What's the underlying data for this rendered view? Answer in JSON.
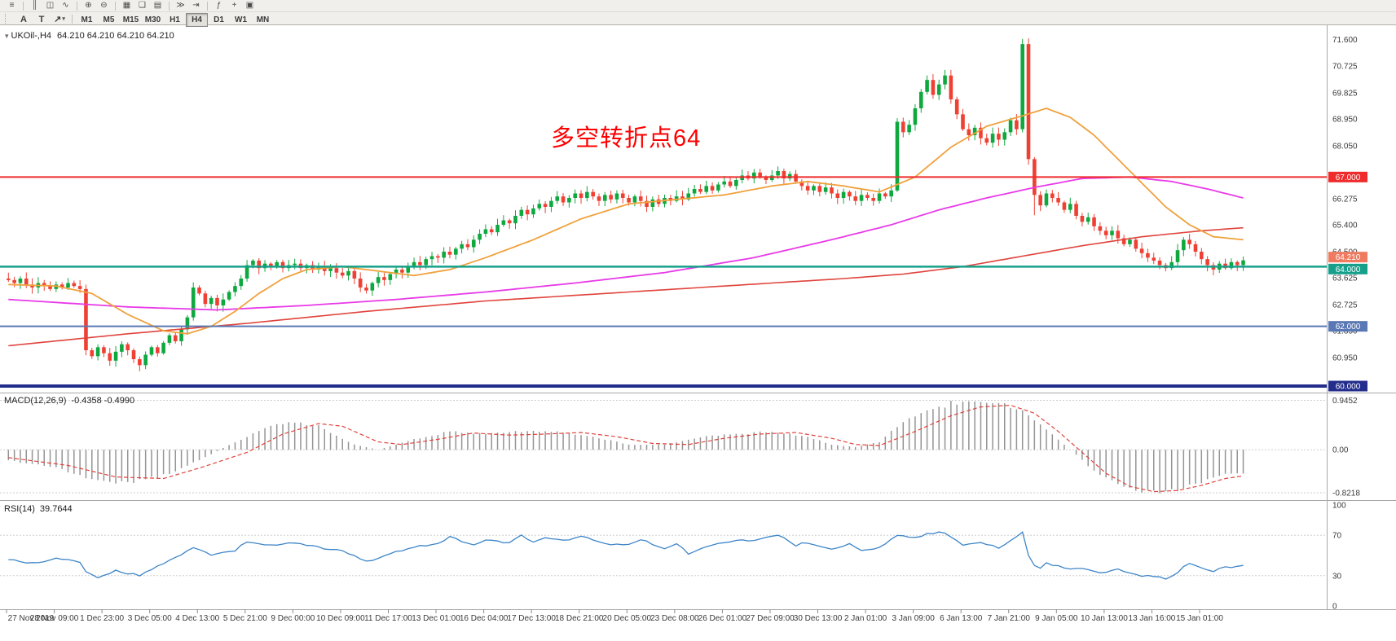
{
  "toolbar": {
    "row1_groups": [
      [
        {
          "name": "window-menu-icon",
          "glyph": "≡"
        }
      ],
      [
        {
          "name": "bars-chart-icon",
          "glyph": "║"
        },
        {
          "name": "candlestick-chart-icon",
          "glyph": "◫"
        },
        {
          "name": "line-chart-icon",
          "glyph": "∿"
        }
      ],
      [
        {
          "name": "zoom-in-icon",
          "glyph": "⊕"
        },
        {
          "name": "zoom-out-icon",
          "glyph": "⊖"
        }
      ],
      [
        {
          "name": "tile-windows-icon",
          "glyph": "▦"
        },
        {
          "name": "cascade-windows-icon",
          "glyph": "❏"
        },
        {
          "name": "arrange-windows-icon",
          "glyph": "▤"
        }
      ],
      [
        {
          "name": "auto-scroll-icon",
          "glyph": "≫"
        },
        {
          "name": "chart-shift-icon",
          "glyph": "⇥"
        }
      ],
      [
        {
          "name": "indicators-icon",
          "glyph": "ƒ"
        },
        {
          "name": "add-object-icon",
          "glyph": "+"
        },
        {
          "name": "templates-icon",
          "glyph": "▣"
        }
      ]
    ],
    "row2_tools": [
      {
        "name": "text-tool",
        "glyph": "A"
      },
      {
        "name": "label-tool",
        "glyph": "T"
      },
      {
        "name": "arrow-objects-tool",
        "glyph": "↗",
        "caret": "▾"
      }
    ],
    "timeframes": [
      "M1",
      "M5",
      "M15",
      "M30",
      "H1",
      "H4",
      "D1",
      "W1",
      "MN"
    ],
    "active_timeframe": "H4"
  },
  "chart": {
    "title_icon": "▾",
    "title_symbol": "UKOil-,H4",
    "title_ohlc": "64.210 64.210 64.210 64.210",
    "annotation_text": "多空转折点64"
  },
  "colors": {
    "up": "#0fa83f",
    "down": "#ef4034",
    "ma_red": "#e0433c",
    "ma_magenta": "#e83ae8",
    "ma_orange": "#f0a13c",
    "macd_hist": "#949494",
    "macd_signal": "#e0433c",
    "rsi_line": "#3d85c8",
    "annotation": "#fe0000"
  },
  "chart_data": {
    "type": "candlestick",
    "symbol": "UKOil-",
    "period": "H4",
    "price_range": [
      59.9,
      72.0
    ],
    "first_open": 63.6,
    "closes": [
      63.55,
      63.45,
      63.6,
      63.4,
      63.3,
      63.45,
      63.35,
      63.25,
      63.4,
      63.3,
      63.45,
      63.35,
      63.25,
      61.2,
      61.0,
      61.3,
      61.1,
      60.85,
      61.15,
      61.4,
      61.2,
      60.9,
      60.7,
      61.05,
      61.3,
      61.1,
      61.45,
      61.7,
      61.5,
      61.9,
      62.3,
      63.3,
      63.1,
      62.75,
      62.95,
      62.7,
      62.9,
      63.15,
      63.35,
      63.6,
      64.05,
      64.2,
      63.95,
      64.1,
      64.0,
      64.15,
      63.95,
      64.05,
      64.1,
      63.95,
      64.05,
      63.9,
      64.0,
      63.85,
      63.95,
      63.8,
      63.7,
      63.85,
      63.6,
      63.3,
      63.2,
      63.45,
      63.65,
      63.55,
      63.75,
      63.9,
      63.8,
      64.0,
      64.15,
      64.05,
      64.25,
      64.35,
      64.3,
      64.5,
      64.4,
      64.6,
      64.75,
      64.65,
      64.9,
      65.1,
      65.25,
      65.15,
      65.4,
      65.55,
      65.45,
      65.7,
      65.9,
      65.75,
      65.95,
      66.1,
      66.0,
      66.2,
      66.35,
      66.15,
      66.3,
      66.45,
      66.3,
      66.5,
      66.35,
      66.2,
      66.4,
      66.25,
      66.45,
      66.3,
      66.15,
      66.35,
      66.2,
      66.0,
      66.25,
      66.1,
      66.3,
      66.2,
      66.35,
      66.25,
      66.45,
      66.6,
      66.5,
      66.7,
      66.55,
      66.75,
      66.85,
      66.7,
      66.9,
      67.05,
      66.95,
      67.15,
      67.0,
      66.9,
      67.05,
      67.2,
      66.95,
      67.1,
      66.85,
      66.7,
      66.55,
      66.7,
      66.5,
      66.65,
      66.45,
      66.3,
      66.5,
      66.35,
      66.2,
      66.4,
      66.3,
      66.2,
      66.45,
      66.35,
      66.55,
      68.85,
      68.5,
      68.75,
      69.3,
      69.85,
      70.25,
      69.75,
      70.1,
      70.4,
      69.6,
      69.1,
      68.6,
      68.4,
      68.65,
      68.3,
      68.15,
      68.45,
      68.25,
      68.5,
      68.9,
      68.6,
      71.45,
      67.6,
      66.4,
      66.05,
      66.45,
      66.3,
      66.15,
      65.9,
      66.1,
      65.7,
      65.5,
      65.65,
      65.35,
      65.2,
      65.05,
      65.2,
      64.95,
      64.75,
      64.9,
      64.6,
      64.45,
      64.3,
      64.2,
      64.05,
      63.95,
      64.15,
      64.55,
      64.9,
      64.75,
      64.5,
      64.25,
      64.05,
      63.9,
      64.1,
      63.95,
      64.15,
      64.05,
      64.21
    ],
    "price_axis": [
      {
        "label": "71.600",
        "value": 71.6
      },
      {
        "label": "70.725",
        "value": 70.725
      },
      {
        "label": "69.825",
        "value": 69.825
      },
      {
        "label": "68.950",
        "value": 68.95
      },
      {
        "label": "68.050",
        "value": 68.05
      },
      {
        "label": "66.275",
        "value": 66.275
      },
      {
        "label": "65.400",
        "value": 65.4
      },
      {
        "label": "64.500",
        "value": 64.5
      },
      {
        "label": "63.625",
        "value": 63.625
      },
      {
        "label": "62.725",
        "value": 62.725
      },
      {
        "label": "61.850",
        "value": 61.85
      },
      {
        "label": "60.950",
        "value": 60.95
      }
    ],
    "levels": [
      {
        "label": "67.000",
        "value": 67.0,
        "color": "#ef2b2b",
        "width": 2,
        "badge_dy": 0
      },
      {
        "label": "62.000",
        "value": 62.0,
        "color": "#5a78b4",
        "width": 2,
        "badge_dy": 0
      },
      {
        "label": "60.000",
        "value": 60.0,
        "color": "#232e8c",
        "width": 4,
        "badge_dy": 0
      },
      {
        "label": "64.000",
        "value": 64.0,
        "color": "#16a08c",
        "width": 2.5,
        "badge_dy": 3
      },
      {
        "label": "64.210",
        "value": 64.21,
        "color": "#ef7a5f",
        "width": 0,
        "badge_dy": -4
      }
    ],
    "ma": {
      "red": [
        [
          0,
          61.35
        ],
        [
          20,
          61.75
        ],
        [
          40,
          62.1
        ],
        [
          60,
          62.5
        ],
        [
          80,
          62.85
        ],
        [
          100,
          63.1
        ],
        [
          120,
          63.35
        ],
        [
          140,
          63.6
        ],
        [
          150,
          63.75
        ],
        [
          160,
          64.0
        ],
        [
          170,
          64.35
        ],
        [
          180,
          64.7
        ],
        [
          190,
          65.0
        ],
        [
          200,
          65.2
        ],
        [
          207,
          65.3
        ]
      ],
      "magenta": [
        [
          0,
          62.9
        ],
        [
          20,
          62.65
        ],
        [
          35,
          62.55
        ],
        [
          50,
          62.7
        ],
        [
          65,
          62.9
        ],
        [
          80,
          63.15
        ],
        [
          95,
          63.45
        ],
        [
          110,
          63.8
        ],
        [
          125,
          64.3
        ],
        [
          138,
          64.9
        ],
        [
          148,
          65.4
        ],
        [
          156,
          65.9
        ],
        [
          164,
          66.3
        ],
        [
          172,
          66.65
        ],
        [
          180,
          66.95
        ],
        [
          188,
          67.0
        ],
        [
          195,
          66.85
        ],
        [
          201,
          66.6
        ],
        [
          207,
          66.3
        ]
      ],
      "orange": [
        [
          0,
          63.4
        ],
        [
          8,
          63.35
        ],
        [
          14,
          63.1
        ],
        [
          20,
          62.4
        ],
        [
          26,
          61.85
        ],
        [
          30,
          61.75
        ],
        [
          34,
          62.0
        ],
        [
          38,
          62.5
        ],
        [
          42,
          63.1
        ],
        [
          46,
          63.6
        ],
        [
          50,
          63.9
        ],
        [
          56,
          64.0
        ],
        [
          62,
          63.85
        ],
        [
          68,
          63.7
        ],
        [
          74,
          63.9
        ],
        [
          80,
          64.3
        ],
        [
          88,
          64.9
        ],
        [
          96,
          65.6
        ],
        [
          104,
          66.1
        ],
        [
          112,
          66.25
        ],
        [
          120,
          66.4
        ],
        [
          128,
          66.7
        ],
        [
          134,
          66.85
        ],
        [
          140,
          66.7
        ],
        [
          146,
          66.5
        ],
        [
          152,
          67.0
        ],
        [
          158,
          68.0
        ],
        [
          164,
          68.7
        ],
        [
          170,
          69.05
        ],
        [
          174,
          69.3
        ],
        [
          178,
          69.0
        ],
        [
          182,
          68.4
        ],
        [
          186,
          67.6
        ],
        [
          190,
          66.8
        ],
        [
          194,
          66.0
        ],
        [
          198,
          65.4
        ],
        [
          202,
          65.0
        ],
        [
          207,
          64.9
        ]
      ]
    },
    "macd": {
      "name": "MACD(12,26,9)",
      "values": "-0.4358 -0.4990",
      "range": [
        -0.9,
        1.0
      ],
      "axis": [
        {
          "label": "0.9452",
          "value": 0.9452
        },
        {
          "label": "0.00",
          "value": 0
        },
        {
          "label": "-0.8218",
          "value": -0.8218
        }
      ],
      "hist": [
        [
          0,
          -0.2
        ],
        [
          8,
          -0.35
        ],
        [
          14,
          -0.6
        ],
        [
          20,
          -0.65
        ],
        [
          26,
          -0.5
        ],
        [
          32,
          -0.2
        ],
        [
          38,
          0.15
        ],
        [
          44,
          0.45
        ],
        [
          48,
          0.55
        ],
        [
          52,
          0.45
        ],
        [
          58,
          0.1
        ],
        [
          62,
          0.0
        ],
        [
          68,
          0.2
        ],
        [
          74,
          0.35
        ],
        [
          80,
          0.3
        ],
        [
          86,
          0.35
        ],
        [
          92,
          0.35
        ],
        [
          98,
          0.25
        ],
        [
          104,
          0.1
        ],
        [
          110,
          0.1
        ],
        [
          116,
          0.25
        ],
        [
          122,
          0.3
        ],
        [
          128,
          0.35
        ],
        [
          134,
          0.25
        ],
        [
          138,
          0.1
        ],
        [
          142,
          0.05
        ],
        [
          146,
          0.15
        ],
        [
          150,
          0.55
        ],
        [
          154,
          0.75
        ],
        [
          158,
          0.9
        ],
        [
          162,
          0.945
        ],
        [
          166,
          0.9
        ],
        [
          170,
          0.75
        ],
        [
          174,
          0.4
        ],
        [
          178,
          0.0
        ],
        [
          182,
          -0.4
        ],
        [
          186,
          -0.65
        ],
        [
          190,
          -0.8
        ],
        [
          194,
          -0.82
        ],
        [
          198,
          -0.7
        ],
        [
          202,
          -0.55
        ],
        [
          205,
          -0.46
        ],
        [
          207,
          -0.44
        ]
      ],
      "signal": [
        [
          0,
          -0.15
        ],
        [
          10,
          -0.3
        ],
        [
          18,
          -0.52
        ],
        [
          26,
          -0.55
        ],
        [
          32,
          -0.35
        ],
        [
          40,
          -0.05
        ],
        [
          46,
          0.3
        ],
        [
          52,
          0.5
        ],
        [
          56,
          0.45
        ],
        [
          62,
          0.15
        ],
        [
          66,
          0.1
        ],
        [
          72,
          0.2
        ],
        [
          78,
          0.32
        ],
        [
          84,
          0.28
        ],
        [
          90,
          0.3
        ],
        [
          96,
          0.33
        ],
        [
          102,
          0.25
        ],
        [
          108,
          0.12
        ],
        [
          114,
          0.1
        ],
        [
          120,
          0.22
        ],
        [
          126,
          0.3
        ],
        [
          132,
          0.33
        ],
        [
          138,
          0.22
        ],
        [
          142,
          0.1
        ],
        [
          146,
          0.08
        ],
        [
          152,
          0.35
        ],
        [
          158,
          0.65
        ],
        [
          163,
          0.82
        ],
        [
          168,
          0.85
        ],
        [
          172,
          0.7
        ],
        [
          176,
          0.35
        ],
        [
          180,
          -0.05
        ],
        [
          184,
          -0.45
        ],
        [
          188,
          -0.7
        ],
        [
          192,
          -0.8
        ],
        [
          196,
          -0.78
        ],
        [
          200,
          -0.68
        ],
        [
          204,
          -0.55
        ],
        [
          207,
          -0.5
        ]
      ]
    },
    "rsi": {
      "name": "RSI(14)",
      "values": "39.7644",
      "range": [
        0,
        100
      ],
      "axis": [
        {
          "label": "100",
          "value": 100
        },
        {
          "label": "70",
          "value": 70
        },
        {
          "label": "30",
          "value": 30
        },
        {
          "label": "0",
          "value": 0
        }
      ],
      "levels": [
        70,
        30
      ],
      "line": [
        [
          0,
          46
        ],
        [
          4,
          42
        ],
        [
          8,
          47
        ],
        [
          12,
          44
        ],
        [
          13,
          33
        ],
        [
          15,
          28
        ],
        [
          18,
          35
        ],
        [
          22,
          30
        ],
        [
          26,
          42
        ],
        [
          31,
          58
        ],
        [
          34,
          50
        ],
        [
          38,
          55
        ],
        [
          40,
          64
        ],
        [
          44,
          60
        ],
        [
          48,
          62
        ],
        [
          52,
          58
        ],
        [
          56,
          55
        ],
        [
          60,
          44
        ],
        [
          64,
          52
        ],
        [
          68,
          58
        ],
        [
          72,
          62
        ],
        [
          74,
          68
        ],
        [
          78,
          60
        ],
        [
          80,
          65
        ],
        [
          84,
          62
        ],
        [
          86,
          70
        ],
        [
          88,
          64
        ],
        [
          90,
          67
        ],
        [
          94,
          65
        ],
        [
          96,
          70
        ],
        [
          100,
          62
        ],
        [
          104,
          60
        ],
        [
          106,
          66
        ],
        [
          110,
          57
        ],
        [
          112,
          62
        ],
        [
          114,
          52
        ],
        [
          118,
          60
        ],
        [
          122,
          64
        ],
        [
          126,
          66
        ],
        [
          129,
          70
        ],
        [
          132,
          60
        ],
        [
          134,
          63
        ],
        [
          138,
          57
        ],
        [
          141,
          61
        ],
        [
          143,
          55
        ],
        [
          146,
          58
        ],
        [
          149,
          70
        ],
        [
          152,
          68
        ],
        [
          154,
          71
        ],
        [
          157,
          73
        ],
        [
          160,
          60
        ],
        [
          163,
          63
        ],
        [
          166,
          58
        ],
        [
          168,
          64
        ],
        [
          170,
          73
        ],
        [
          171,
          50
        ],
        [
          172,
          40
        ],
        [
          173,
          37
        ],
        [
          174,
          42
        ],
        [
          176,
          40
        ],
        [
          178,
          36
        ],
        [
          180,
          38
        ],
        [
          182,
          34
        ],
        [
          184,
          33
        ],
        [
          186,
          36
        ],
        [
          188,
          32
        ],
        [
          190,
          30
        ],
        [
          192,
          29
        ],
        [
          194,
          27
        ],
        [
          196,
          33
        ],
        [
          197,
          40
        ],
        [
          198,
          42
        ],
        [
          200,
          38
        ],
        [
          202,
          35
        ],
        [
          204,
          38
        ],
        [
          206,
          39
        ],
        [
          207,
          39.8
        ]
      ]
    },
    "x_labels": [
      "27 Nov 2019",
      "28 Nov 09:00",
      "1 Dec 23:00",
      "3 Dec 05:00",
      "4 Dec 13:00",
      "5 Dec 21:00",
      "9 Dec 00:00",
      "10 Dec 09:00",
      "11 Dec 17:00",
      "13 Dec 01:00",
      "16 Dec 04:00",
      "17 Dec 13:00",
      "18 Dec 21:00",
      "20 Dec 05:00",
      "23 Dec 08:00",
      "26 Dec 01:00",
      "27 Dec 09:00",
      "30 Dec 13:00",
      "2 Jan 01:00",
      "3 Jan 09:00",
      "6 Jan 13:00",
      "7 Jan 21:00",
      "9 Jan 05:00",
      "10 Jan 13:00",
      "13 Jan 16:00",
      "15 Jan 01:00"
    ]
  }
}
